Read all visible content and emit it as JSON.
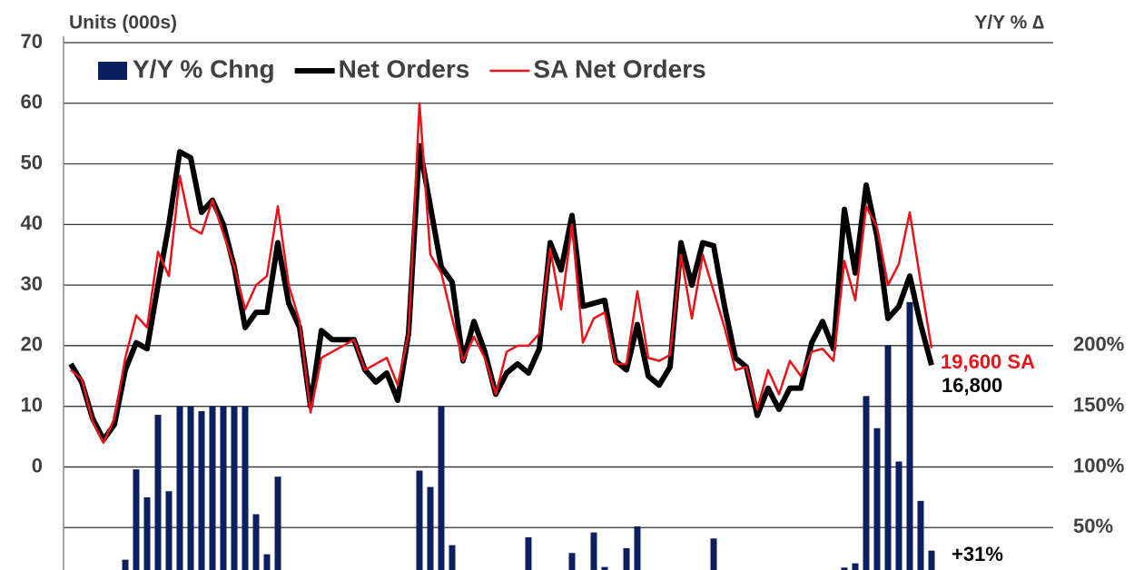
{
  "chart_data": {
    "type": "combo",
    "ylabel": "Units (000s)",
    "y2label": "Y/Y % ∆",
    "legend": "top-left",
    "grid": true,
    "ylim": [
      -17,
      70
    ],
    "yticks": [
      0,
      10,
      20,
      30,
      40,
      50,
      60,
      70
    ],
    "y2lim": [
      15,
      450
    ],
    "y2ticks": [
      {
        "value": 50,
        "label": "50%"
      },
      {
        "value": 100,
        "label": "100%"
      },
      {
        "value": 150,
        "label": "150%"
      },
      {
        "value": 200,
        "label": "200%"
      }
    ],
    "series": [
      {
        "name": "Y/Y % Chng",
        "type": "bar",
        "axis": "y2",
        "color": "#0c1f5e",
        "values": [
          null,
          null,
          null,
          null,
          null,
          23.5,
          98,
          75,
          143,
          80,
          150,
          150,
          146,
          150,
          150,
          150,
          150,
          61,
          28,
          92,
          null,
          null,
          null,
          null,
          null,
          null,
          null,
          null,
          null,
          null,
          null,
          null,
          97,
          83.5,
          150,
          35.5,
          null,
          null,
          null,
          null,
          null,
          null,
          42,
          null,
          null,
          null,
          29,
          null,
          46,
          17.5,
          null,
          33,
          51,
          null,
          null,
          null,
          null,
          null,
          null,
          41,
          null,
          null,
          null,
          null,
          null,
          null,
          null,
          null,
          null,
          null,
          null,
          17,
          20.5,
          158.5,
          132,
          200.5,
          104.5,
          236,
          72,
          31
        ],
        "value_labels": [
          null,
          null,
          null,
          null,
          null,
          null,
          null,
          null,
          null,
          null,
          null,
          null,
          null,
          null,
          null,
          null,
          null,
          null,
          null,
          null,
          null,
          null,
          null,
          null,
          null,
          null,
          null,
          null,
          null,
          null,
          null,
          null,
          null,
          null,
          null,
          null,
          null,
          null,
          null,
          null,
          null,
          null,
          null,
          null,
          null,
          null,
          null,
          null,
          null,
          null,
          null,
          null,
          null,
          null,
          null,
          null,
          null,
          null,
          null,
          null,
          null,
          null,
          null,
          null,
          null,
          null,
          null,
          null,
          null,
          null,
          null,
          null,
          null,
          null,
          null,
          null,
          null,
          null,
          null,
          "+31%"
        ]
      },
      {
        "name": "Net Orders",
        "type": "line",
        "color": "#000000",
        "width": 6,
        "values": [
          17,
          14,
          8,
          4.5,
          7,
          16,
          20.5,
          19.5,
          30,
          40,
          52,
          51,
          42,
          44,
          40,
          33,
          23,
          25.5,
          25.5,
          37,
          27,
          23,
          10,
          22.5,
          21,
          21,
          21,
          16,
          14,
          15.5,
          11,
          22,
          53,
          43,
          33,
          30.5,
          17.5,
          24,
          19,
          12,
          15.5,
          17,
          15.5,
          19.5,
          37,
          32.5,
          41.5,
          26.5,
          27,
          27.5,
          17.5,
          16,
          23.5,
          15,
          13.5,
          16.5,
          37,
          30,
          37,
          36.5,
          26.5,
          18,
          16.5,
          8.5,
          13,
          9.5,
          13,
          13,
          20.5,
          24,
          19.5,
          42.5,
          32,
          46.5,
          38,
          24.5,
          26.5,
          31.5,
          23.5,
          16.8
        ],
        "value_labels": [
          null,
          null,
          null,
          null,
          null,
          null,
          null,
          null,
          null,
          null,
          null,
          null,
          null,
          null,
          null,
          null,
          null,
          null,
          null,
          null,
          null,
          null,
          null,
          null,
          null,
          null,
          null,
          null,
          null,
          null,
          null,
          null,
          null,
          null,
          null,
          null,
          null,
          null,
          null,
          null,
          null,
          null,
          null,
          null,
          null,
          null,
          null,
          null,
          null,
          null,
          null,
          null,
          null,
          null,
          null,
          null,
          null,
          null,
          null,
          null,
          null,
          null,
          null,
          null,
          null,
          null,
          null,
          null,
          null,
          null,
          null,
          null,
          null,
          null,
          null,
          null,
          null,
          null,
          null,
          "16,800"
        ]
      },
      {
        "name": "SA Net Orders",
        "type": "line",
        "color": "#e8141b",
        "width": 2.5,
        "values": [
          16,
          14.5,
          7.5,
          4,
          8,
          18,
          25,
          23,
          35.5,
          31.5,
          48,
          39.5,
          38.5,
          44,
          38.5,
          33,
          26,
          30,
          31.5,
          43,
          30,
          24,
          9,
          18,
          19,
          20,
          21,
          16,
          17,
          18,
          13.5,
          22,
          60,
          35,
          32,
          24.5,
          17.5,
          21.5,
          18,
          12,
          19,
          20,
          20,
          22,
          36,
          26,
          40,
          20.5,
          24.5,
          25.5,
          17,
          17,
          29,
          18,
          17.5,
          18.5,
          35,
          24.5,
          35,
          29,
          23,
          16,
          16.5,
          9.5,
          16,
          12,
          17.5,
          15,
          19,
          19.5,
          17.5,
          34,
          27.5,
          43,
          39.5,
          30,
          33.5,
          42,
          30.5,
          19.6
        ],
        "value_labels": [
          null,
          null,
          null,
          null,
          null,
          null,
          null,
          null,
          null,
          null,
          null,
          null,
          null,
          null,
          null,
          null,
          null,
          null,
          null,
          null,
          null,
          null,
          null,
          null,
          null,
          null,
          null,
          null,
          null,
          null,
          null,
          null,
          null,
          null,
          null,
          null,
          null,
          null,
          null,
          null,
          null,
          null,
          null,
          null,
          null,
          null,
          null,
          null,
          null,
          null,
          null,
          null,
          null,
          null,
          null,
          null,
          null,
          null,
          null,
          null,
          null,
          null,
          null,
          null,
          null,
          null,
          null,
          null,
          null,
          null,
          null,
          null,
          null,
          null,
          null,
          null,
          null,
          null,
          null,
          "19,600 SA"
        ]
      }
    ]
  }
}
